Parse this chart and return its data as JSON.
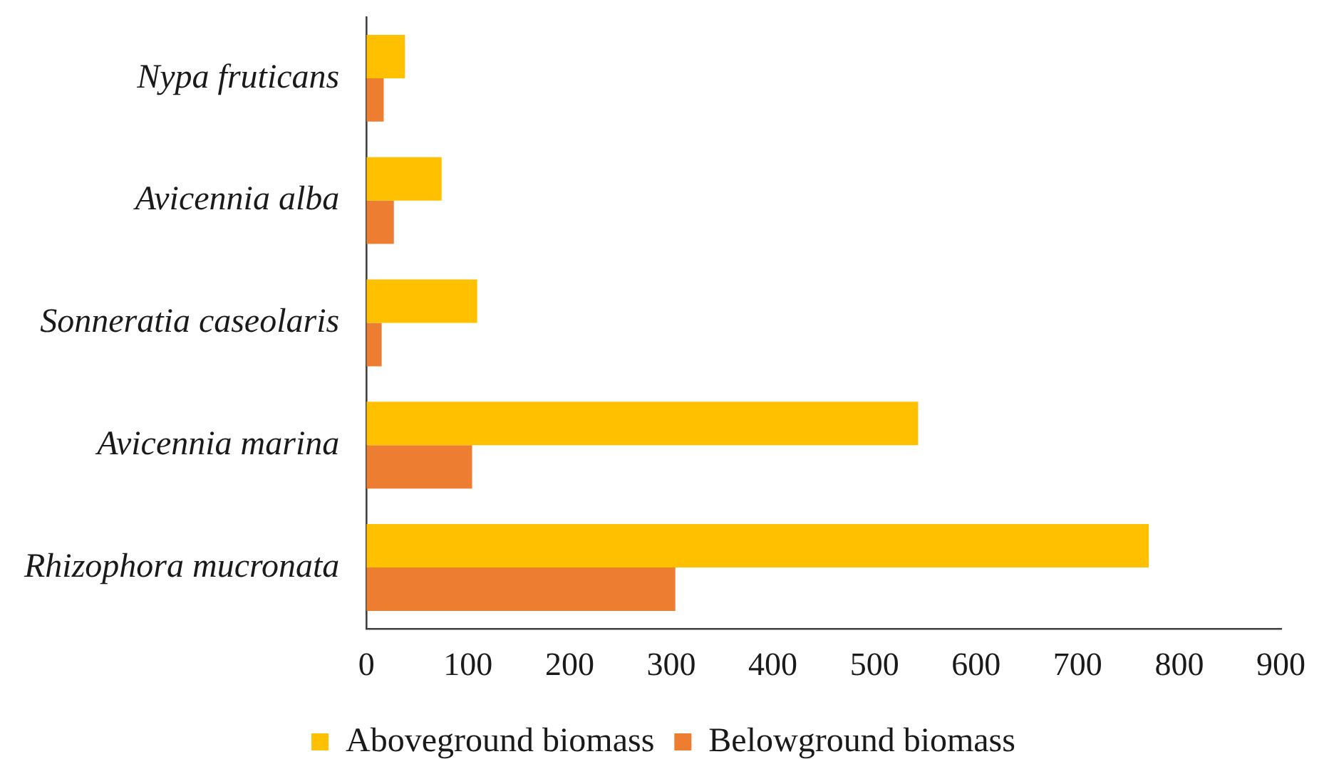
{
  "chart_data": {
    "type": "bar",
    "orientation": "horizontal",
    "categories": [
      "Nypa fruticans",
      "Avicennia alba",
      "Sonneratia caseolaris",
      "Avicennia marina",
      "Rhizophora mucronata"
    ],
    "series": [
      {
        "name": "Aboveground biomass",
        "color": "#ffc000",
        "values": [
          38,
          74,
          109,
          543,
          770
        ]
      },
      {
        "name": "Belowground biomass",
        "color": "#ed7d31",
        "values": [
          17,
          27,
          15,
          104,
          304
        ]
      }
    ],
    "xlim": [
      0,
      900
    ],
    "xticks": [
      0,
      100,
      200,
      300,
      400,
      500,
      600,
      700,
      800,
      900
    ],
    "legend": "bottom"
  }
}
